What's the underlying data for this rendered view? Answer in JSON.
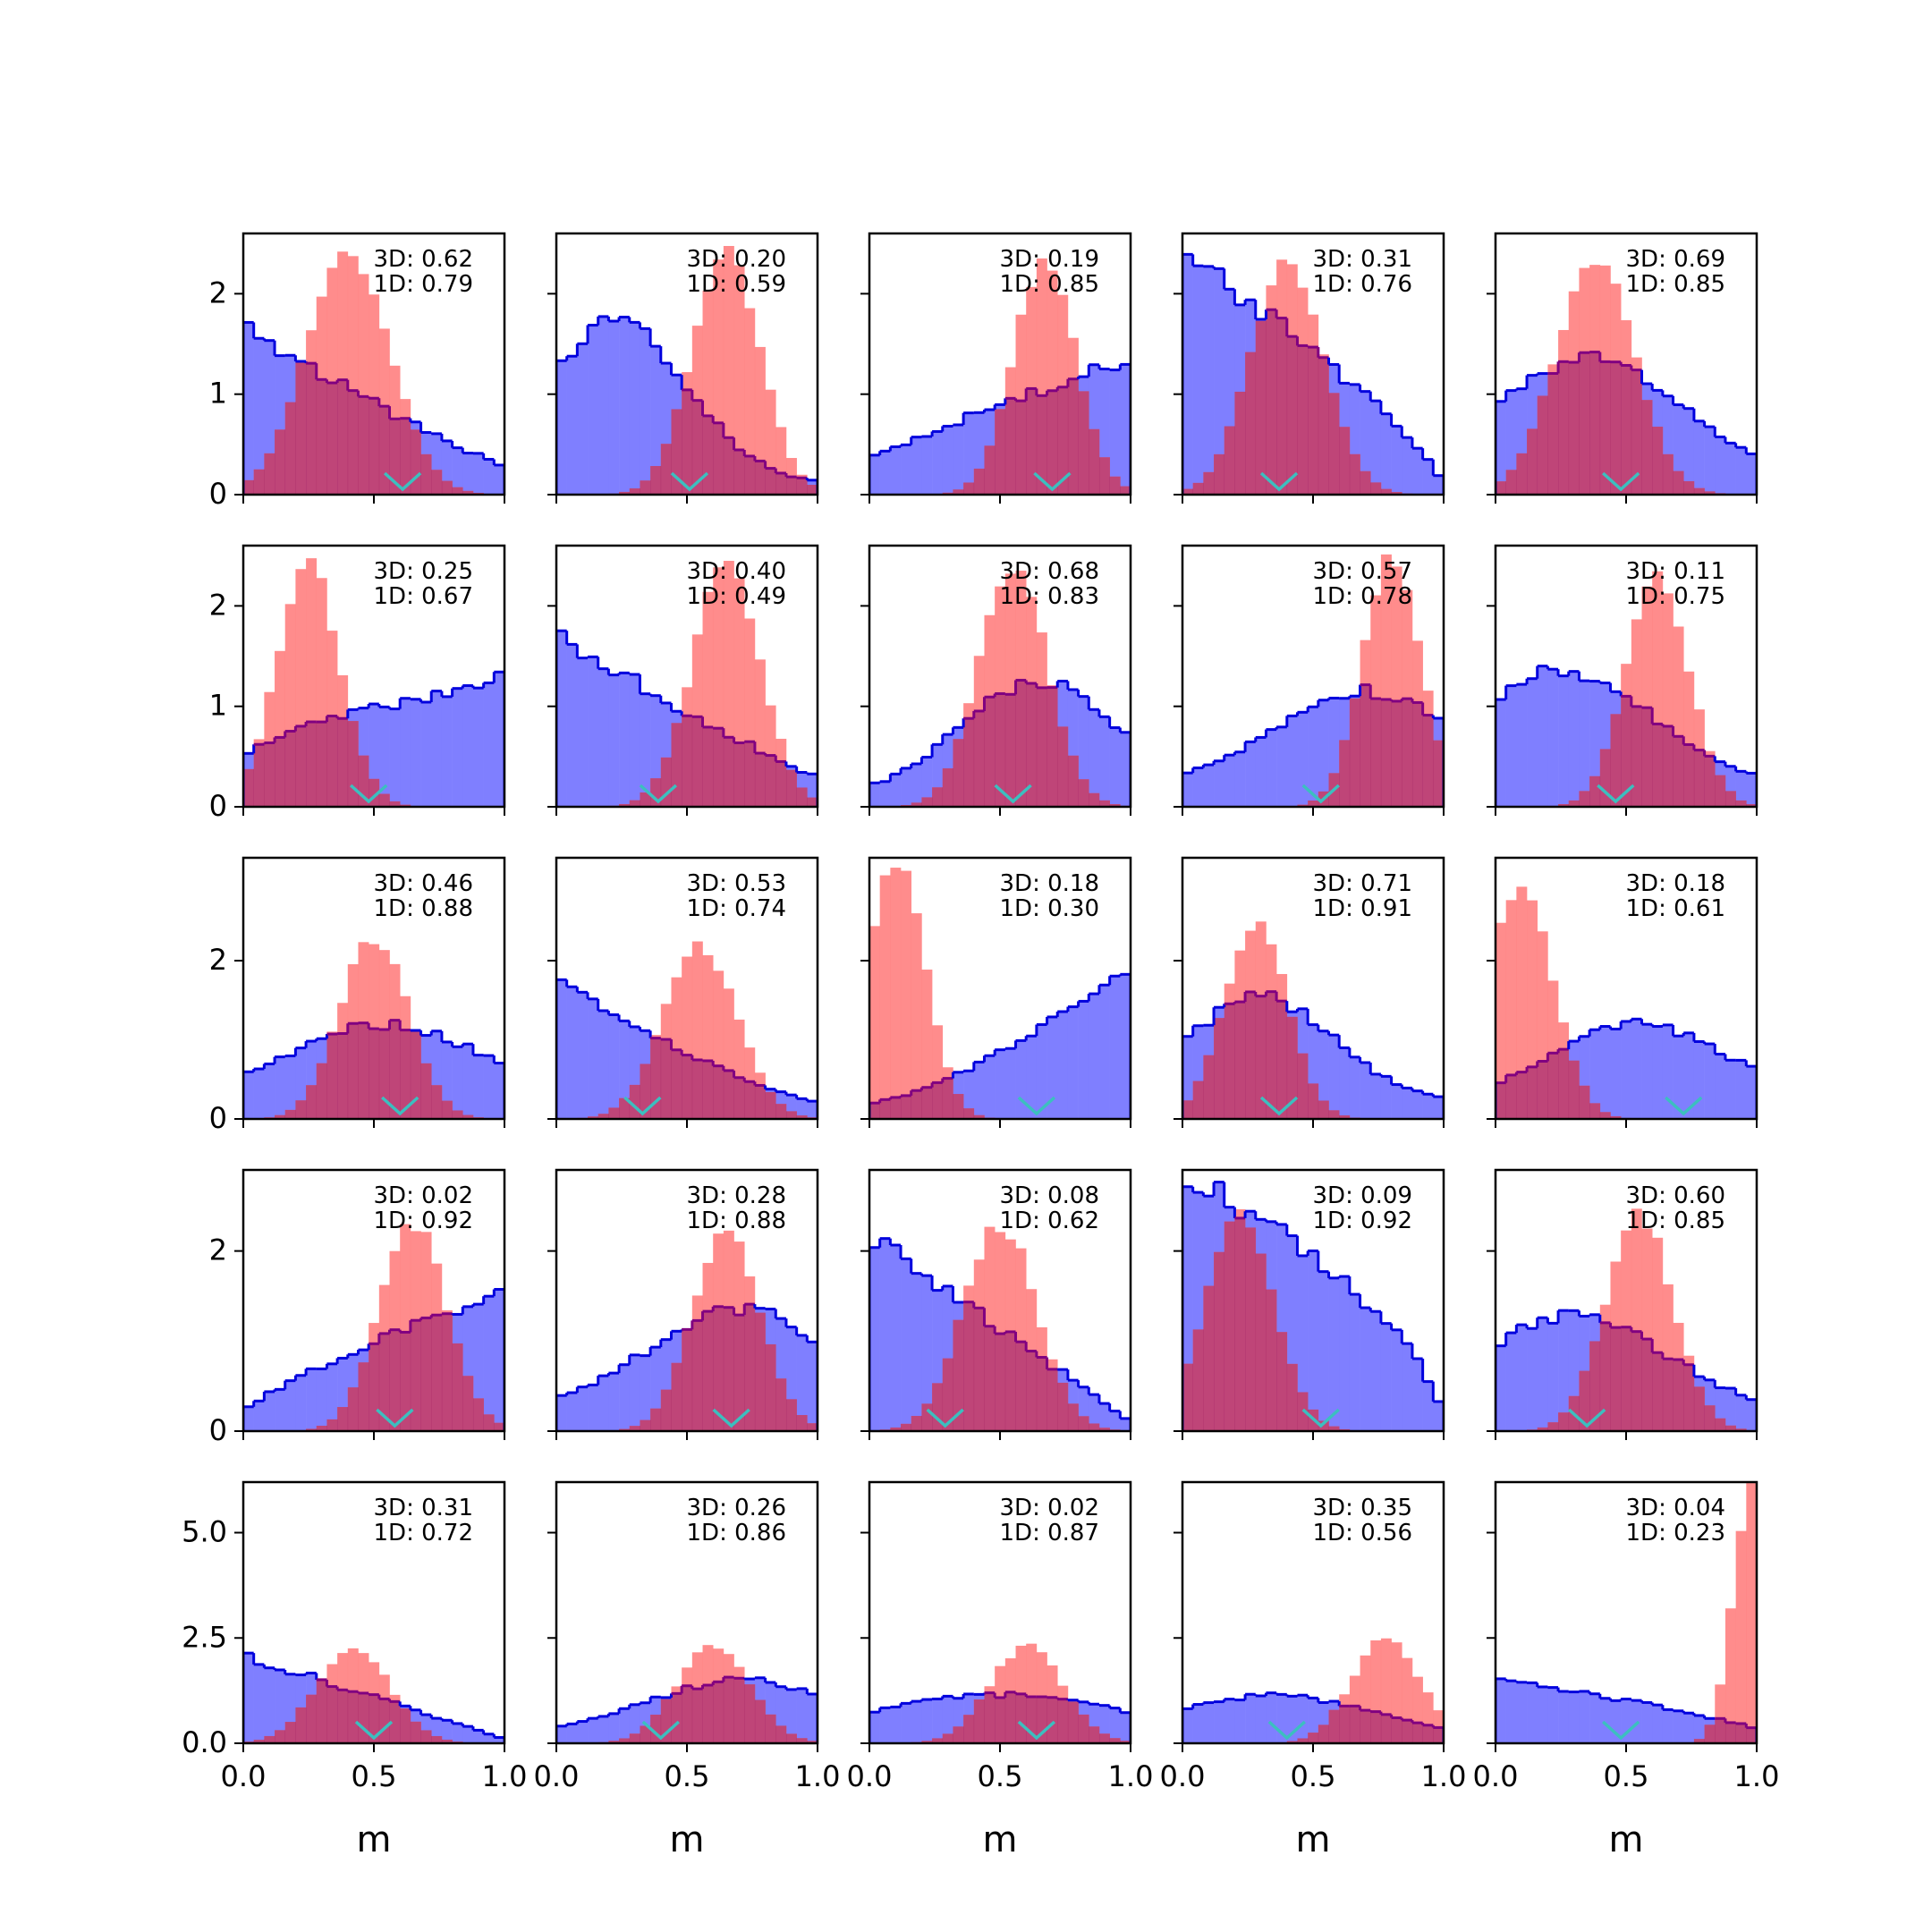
{
  "chart_data": {
    "type": "histogram-grid",
    "xlabel": "m",
    "xlim": [
      0,
      1
    ],
    "x_ticks": [
      "0.0",
      "0.5",
      "1.0"
    ],
    "row_ylim": [
      [
        0,
        2.6
      ],
      [
        0,
        2.6
      ],
      [
        0,
        3.3
      ],
      [
        0,
        2.9
      ],
      [
        0,
        6.2
      ]
    ],
    "row_yticks": [
      [
        {
          "v": 0,
          "label": "0"
        },
        {
          "v": 1,
          "label": "1"
        },
        {
          "v": 2,
          "label": "2"
        }
      ],
      [
        {
          "v": 0,
          "label": "0"
        },
        {
          "v": 1,
          "label": "1"
        },
        {
          "v": 2,
          "label": "2"
        }
      ],
      [
        {
          "v": 0,
          "label": "0"
        },
        {
          "v": 2,
          "label": "2"
        }
      ],
      [
        {
          "v": 0,
          "label": "0"
        },
        {
          "v": 2,
          "label": "2"
        }
      ],
      [
        {
          "v": 0,
          "label": "0.0"
        },
        {
          "v": 2.5,
          "label": "2.5"
        },
        {
          "v": 5,
          "label": "5.0"
        }
      ]
    ],
    "colors": {
      "blue_fill": "#7f7fff",
      "blue_edge": "#0000dd",
      "red_fill": "#ff7f7f",
      "overlap_edge": "#800080",
      "marker": "#3cbfbf"
    },
    "panels": [
      {
        "ann3d": "3D: 0.62",
        "ann1d": "1D: 0.79",
        "blue": {
          "type": "dec",
          "a": 1.7,
          "b": 0.3,
          "pw": 1.2
        },
        "red": {
          "mu": 0.4,
          "sd": 0.16,
          "peak": 2.4
        },
        "marker": 0.61
      },
      {
        "ann3d": "3D: 0.20",
        "ann1d": "1D: 0.59",
        "blue": {
          "type": "hump",
          "mu": 0.22,
          "sd": 0.28,
          "peak": 1.7,
          "base": 0.1
        },
        "red": {
          "mu": 0.65,
          "sd": 0.13,
          "peak": 2.4
        },
        "marker": 0.51
      },
      {
        "ann3d": "3D: 0.19",
        "ann1d": "1D: 0.85",
        "blue": {
          "type": "inc",
          "a": 0.35,
          "b": 1.35,
          "pw": 0.9
        },
        "red": {
          "mu": 0.67,
          "sd": 0.12,
          "peak": 2.3
        },
        "marker": 0.7
      },
      {
        "ann3d": "3D: 0.31",
        "ann1d": "1D: 0.76",
        "blue": {
          "type": "dec",
          "a": 2.4,
          "b": 0.1,
          "pw": 0.8
        },
        "red": {
          "mu": 0.4,
          "sd": 0.14,
          "peak": 2.3
        },
        "marker": 0.37
      },
      {
        "ann3d": "3D: 0.69",
        "ann1d": "1D: 0.85",
        "blue": {
          "type": "hump",
          "mu": 0.35,
          "sd": 0.35,
          "peak": 1.35,
          "base": 0.2
        },
        "red": {
          "mu": 0.38,
          "sd": 0.15,
          "peak": 2.35
        },
        "marker": 0.48
      },
      {
        "ann3d": "3D: 0.25",
        "ann1d": "1D: 0.67",
        "blue": {
          "type": "inc",
          "a": 0.5,
          "b": 1.28,
          "pw": 0.7
        },
        "red": {
          "mu": 0.25,
          "sd": 0.12,
          "peak": 2.4
        },
        "marker": 0.48
      },
      {
        "ann3d": "3D: 0.40",
        "ann1d": "1D: 0.49",
        "blue": {
          "type": "dec",
          "a": 1.7,
          "b": 0.3,
          "pw": 1.1
        },
        "red": {
          "mu": 0.65,
          "sd": 0.13,
          "peak": 2.4
        },
        "marker": 0.39
      },
      {
        "ann3d": "3D: 0.68",
        "ann1d": "1D: 0.83",
        "blue": {
          "type": "hump",
          "mu": 0.65,
          "sd": 0.3,
          "peak": 1.25,
          "base": 0.1
        },
        "red": {
          "mu": 0.55,
          "sd": 0.13,
          "peak": 2.4
        },
        "marker": 0.55
      },
      {
        "ann3d": "3D: 0.57",
        "ann1d": "1D: 0.78",
        "blue": {
          "type": "hump",
          "mu": 0.7,
          "sd": 0.35,
          "peak": 1.15,
          "base": 0.2
        },
        "red": {
          "mu": 0.8,
          "sd": 0.11,
          "peak": 2.5
        },
        "marker": 0.53
      },
      {
        "ann3d": "3D: 0.11",
        "ann1d": "1D: 0.75",
        "blue": {
          "type": "hump",
          "mu": 0.25,
          "sd": 0.35,
          "peak": 1.35,
          "base": 0.2
        },
        "red": {
          "mu": 0.62,
          "sd": 0.12,
          "peak": 2.3
        },
        "marker": 0.46
      },
      {
        "ann3d": "3D: 0.46",
        "ann1d": "1D: 0.88",
        "blue": {
          "type": "hump",
          "mu": 0.55,
          "sd": 0.35,
          "peak": 1.2,
          "base": 0.3
        },
        "red": {
          "mu": 0.5,
          "sd": 0.13,
          "peak": 2.3
        },
        "marker": 0.6
      },
      {
        "ann3d": "3D: 0.53",
        "ann1d": "1D: 0.74",
        "blue": {
          "type": "dec",
          "a": 1.7,
          "b": 0.2,
          "pw": 1.2
        },
        "red": {
          "mu": 0.55,
          "sd": 0.14,
          "peak": 2.2
        },
        "marker": 0.33
      },
      {
        "ann3d": "3D: 0.18",
        "ann1d": "1D: 0.30",
        "blue": {
          "type": "inc",
          "a": 0.2,
          "b": 1.9,
          "pw": 1.4
        },
        "red": {
          "mu": 0.1,
          "sd": 0.11,
          "peak": 3.3
        },
        "marker": 0.64
      },
      {
        "ann3d": "3D: 0.71",
        "ann1d": "1D: 0.91",
        "blue": {
          "type": "hump",
          "mu": 0.3,
          "sd": 0.28,
          "peak": 1.55,
          "base": 0.2
        },
        "red": {
          "mu": 0.28,
          "sd": 0.12,
          "peak": 2.5
        },
        "marker": 0.37
      },
      {
        "ann3d": "3D: 0.18",
        "ann1d": "1D: 0.61",
        "blue": {
          "type": "hump",
          "mu": 0.55,
          "sd": 0.35,
          "peak": 1.2,
          "base": 0.15
        },
        "red": {
          "mu": 0.1,
          "sd": 0.12,
          "peak": 3.0
        },
        "marker": 0.72
      },
      {
        "ann3d": "3D: 0.02",
        "ann1d": "1D: 0.92",
        "blue": {
          "type": "inc",
          "a": 0.2,
          "b": 1.55,
          "pw": 0.8
        },
        "red": {
          "mu": 0.65,
          "sd": 0.13,
          "peak": 2.3
        },
        "marker": 0.58
      },
      {
        "ann3d": "3D: 0.28",
        "ann1d": "1D: 0.88",
        "blue": {
          "type": "hump",
          "mu": 0.7,
          "sd": 0.35,
          "peak": 1.35,
          "base": 0.2
        },
        "red": {
          "mu": 0.65,
          "sd": 0.13,
          "peak": 2.2
        },
        "marker": 0.67
      },
      {
        "ann3d": "3D: 0.08",
        "ann1d": "1D: 0.62",
        "blue": {
          "type": "dec",
          "a": 2.2,
          "b": 0.1,
          "pw": 1.0
        },
        "red": {
          "mu": 0.5,
          "sd": 0.14,
          "peak": 2.3
        },
        "marker": 0.29
      },
      {
        "ann3d": "3D: 0.09",
        "ann1d": "1D: 0.92",
        "blue": {
          "type": "dec",
          "a": 2.9,
          "b": 0.05,
          "pw": 0.6
        },
        "red": {
          "mu": 0.22,
          "sd": 0.13,
          "peak": 2.4
        },
        "marker": 0.53
      },
      {
        "ann3d": "3D: 0.60",
        "ann1d": "1D: 0.85",
        "blue": {
          "type": "hump",
          "mu": 0.3,
          "sd": 0.35,
          "peak": 1.3,
          "base": 0.2
        },
        "red": {
          "mu": 0.55,
          "sd": 0.13,
          "peak": 2.4
        },
        "marker": 0.35
      },
      {
        "ann3d": "3D: 0.31",
        "ann1d": "1D: 0.72",
        "blue": {
          "type": "dec",
          "a": 2.1,
          "b": 0.1,
          "pw": 1.0
        },
        "red": {
          "mu": 0.42,
          "sd": 0.14,
          "peak": 2.3
        },
        "marker": 0.5
      },
      {
        "ann3d": "3D: 0.26",
        "ann1d": "1D: 0.86",
        "blue": {
          "type": "hump",
          "mu": 0.7,
          "sd": 0.35,
          "peak": 1.5,
          "base": 0.2
        },
        "red": {
          "mu": 0.6,
          "sd": 0.14,
          "peak": 2.3
        },
        "marker": 0.4
      },
      {
        "ann3d": "3D: 0.02",
        "ann1d": "1D: 0.87",
        "blue": {
          "type": "hump",
          "mu": 0.5,
          "sd": 0.4,
          "peak": 1.15,
          "base": 0.4
        },
        "red": {
          "mu": 0.6,
          "sd": 0.14,
          "peak": 2.3
        },
        "marker": 0.64
      },
      {
        "ann3d": "3D: 0.35",
        "ann1d": "1D: 0.56",
        "blue": {
          "type": "hump",
          "mu": 0.35,
          "sd": 0.35,
          "peak": 1.15,
          "base": 0.2
        },
        "red": {
          "mu": 0.78,
          "sd": 0.13,
          "peak": 2.5
        },
        "marker": 0.4
      },
      {
        "ann3d": "3D: 0.04",
        "ann1d": "1D: 0.23",
        "blue": {
          "type": "dec",
          "a": 1.6,
          "b": 0.35,
          "pw": 0.9
        },
        "red": {
          "mu": 0.98,
          "sd": 0.07,
          "peak": 6.0
        },
        "marker": 0.48
      }
    ]
  }
}
